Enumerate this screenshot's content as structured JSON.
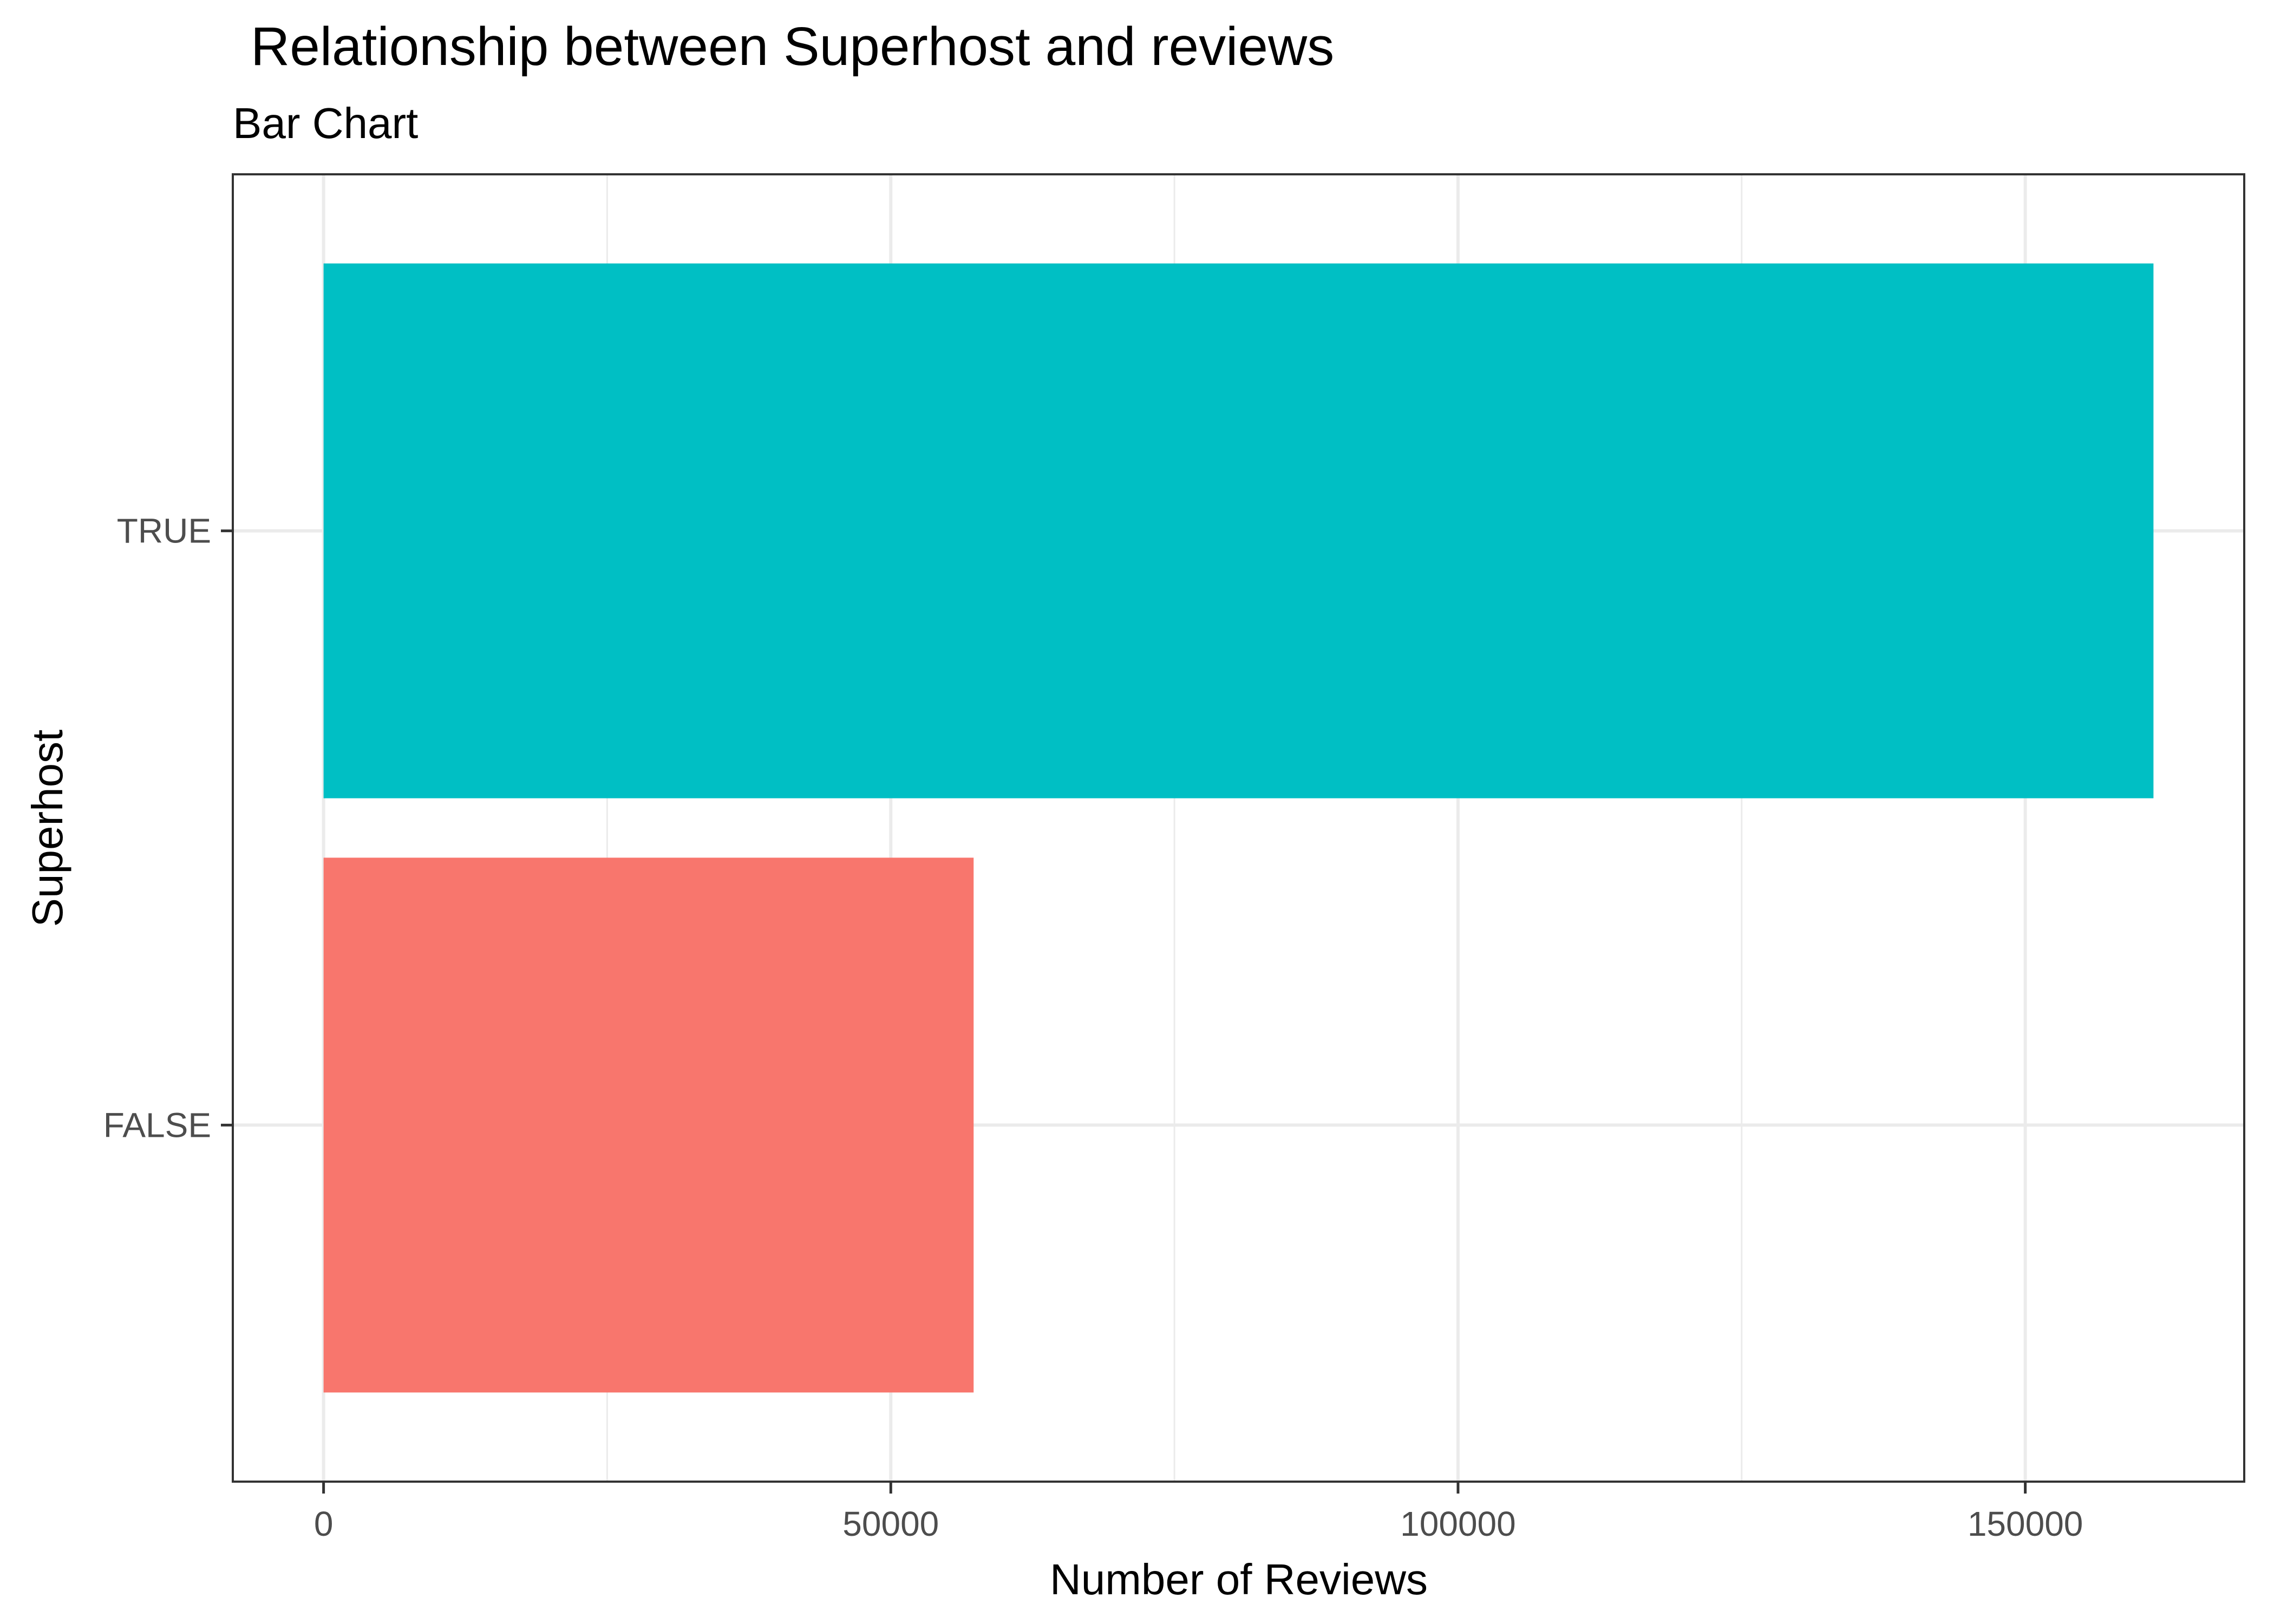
{
  "chart_data": {
    "type": "bar",
    "orientation": "horizontal",
    "title": "Relationship between Superhost and reviews",
    "subtitle": "Bar Chart",
    "xlabel": "Number of Reviews",
    "ylabel": "Superhost",
    "categories": [
      "FALSE",
      "TRUE"
    ],
    "values": [
      57300,
      161300
    ],
    "colors": [
      "#F8766D",
      "#00BFC4"
    ],
    "xlim": [
      -8000,
      169300
    ],
    "x_ticks": [
      0,
      50000,
      100000,
      150000
    ],
    "x_tick_labels": [
      "0",
      "50000",
      "100000",
      "150000"
    ],
    "grid": true,
    "legend": "none",
    "theme": "bw"
  }
}
